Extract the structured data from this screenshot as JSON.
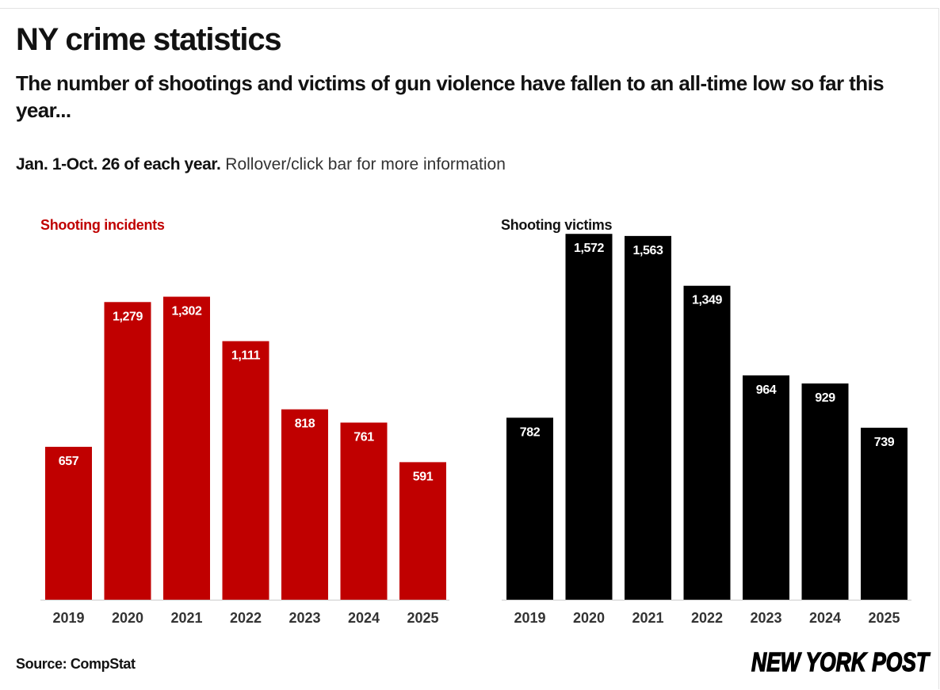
{
  "header": {
    "title": "NY crime statistics",
    "subtitle": "The number of shootings and victims of gun violence have fallen to an all-time low so far this year...",
    "note_bold": "Jan. 1-Oct. 26 of each year.",
    "note_rest": "Rollover/click bar for more information"
  },
  "colors": {
    "incidents": "#c00000",
    "victims": "#000000",
    "axis": "#cccccc"
  },
  "chart_data": [
    {
      "type": "bar",
      "title": "Shooting incidents",
      "categories": [
        "2019",
        "2020",
        "2021",
        "2022",
        "2023",
        "2024",
        "2025"
      ],
      "values": [
        657,
        1279,
        1302,
        1111,
        818,
        761,
        591
      ],
      "labels": [
        "657",
        "1,279",
        "1,302",
        "1,111",
        "818",
        "761",
        "591"
      ],
      "ylim": [
        0,
        1600
      ],
      "xlabel": "",
      "ylabel": "",
      "grid": false
    },
    {
      "type": "bar",
      "title": "Shooting victims",
      "categories": [
        "2019",
        "2020",
        "2021",
        "2022",
        "2023",
        "2024",
        "2025"
      ],
      "values": [
        782,
        1572,
        1563,
        1349,
        964,
        929,
        739
      ],
      "labels": [
        "782",
        "1,572",
        "1,563",
        "1,349",
        "964",
        "929",
        "739"
      ],
      "ylim": [
        0,
        1600
      ],
      "xlabel": "",
      "ylabel": "",
      "grid": false
    }
  ],
  "footer": {
    "source": "Source: CompStat",
    "logo_text": "NEW YORK POST"
  }
}
